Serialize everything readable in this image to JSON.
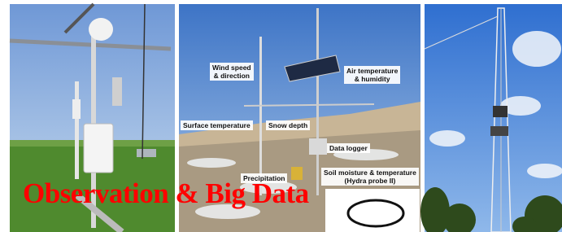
{
  "labels": [
    {
      "lines": [
        "Wind speed",
        "& direction"
      ]
    },
    {
      "lines": [
        "Air temperature",
        "& humidity"
      ]
    },
    {
      "lines": [
        "Surface temperature"
      ]
    },
    {
      "lines": [
        "Snow depth"
      ]
    },
    {
      "lines": [
        "Data logger"
      ]
    },
    {
      "lines": [
        "Precipitation"
      ]
    },
    {
      "lines": [
        "Soil moisture & temperature",
        "(Hydra probe II)"
      ]
    }
  ],
  "title": "Observation & Big Data"
}
